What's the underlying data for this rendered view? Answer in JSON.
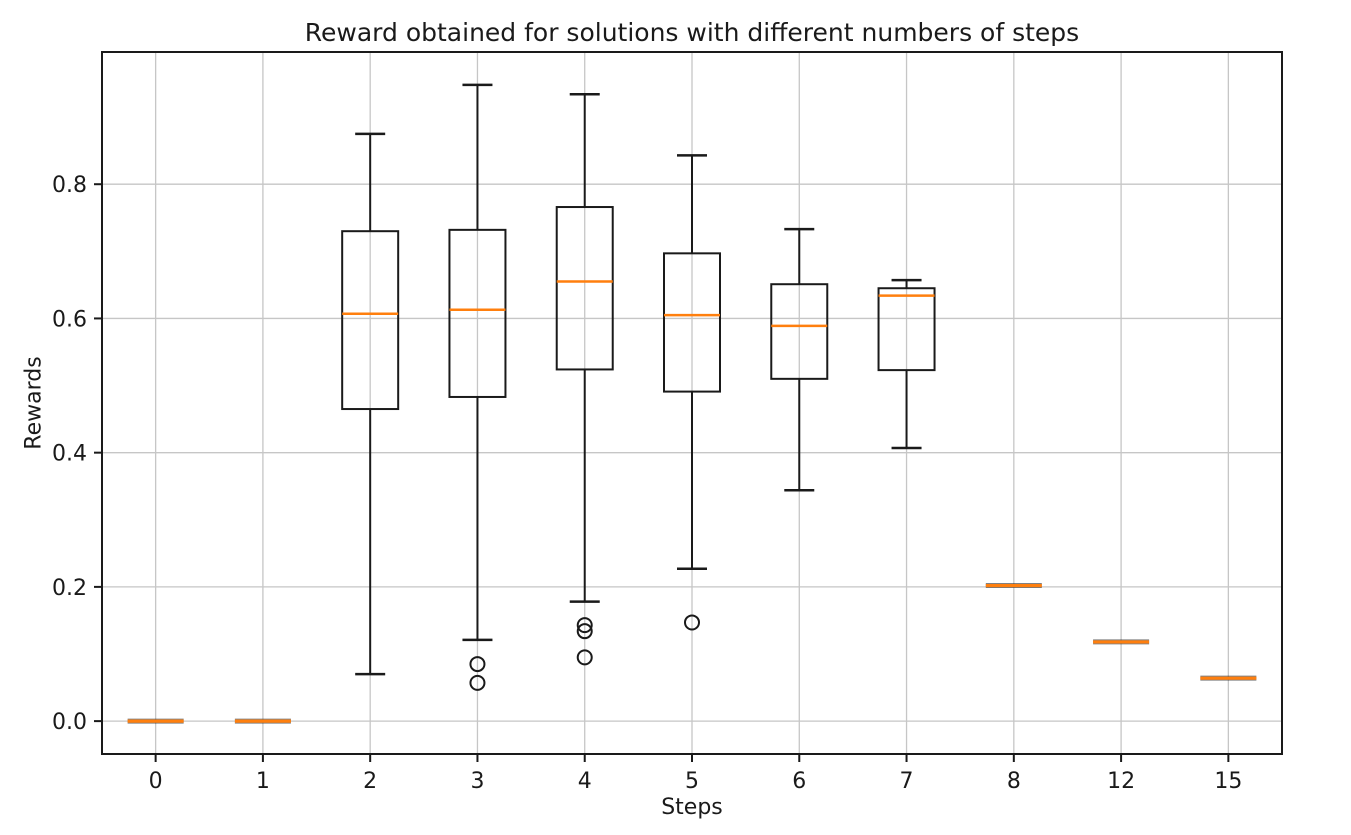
{
  "chart_data": {
    "type": "boxplot",
    "title": "Reward obtained for solutions with different numbers of steps",
    "xlabel": "Steps",
    "ylabel": "Rewards",
    "categories": [
      "0",
      "1",
      "2",
      "3",
      "4",
      "5",
      "6",
      "7",
      "8",
      "12",
      "15"
    ],
    "yticks": [
      {
        "label": "0.0",
        "value": 0.0
      },
      {
        "label": "0.2",
        "value": 0.2
      },
      {
        "label": "0.4",
        "value": 0.4
      },
      {
        "label": "0.6",
        "value": 0.6
      },
      {
        "label": "0.8",
        "value": 0.8
      }
    ],
    "ylim": [
      -0.049,
      0.997
    ],
    "grid": true,
    "boxes": [
      {
        "category": "0",
        "whisker_lo": 0.0,
        "q1": 0.0,
        "median": 0.0,
        "q3": 0.0,
        "whisker_hi": 0.0,
        "outliers": []
      },
      {
        "category": "1",
        "whisker_lo": 0.0,
        "q1": 0.0,
        "median": 0.0,
        "q3": 0.0,
        "whisker_hi": 0.0,
        "outliers": []
      },
      {
        "category": "2",
        "whisker_lo": 0.07,
        "q1": 0.465,
        "median": 0.607,
        "q3": 0.73,
        "whisker_hi": 0.875,
        "outliers": []
      },
      {
        "category": "3",
        "whisker_lo": 0.121,
        "q1": 0.483,
        "median": 0.613,
        "q3": 0.732,
        "whisker_hi": 0.948,
        "outliers": [
          0.085,
          0.057
        ]
      },
      {
        "category": "4",
        "whisker_lo": 0.178,
        "q1": 0.524,
        "median": 0.655,
        "q3": 0.766,
        "whisker_hi": 0.934,
        "outliers": [
          0.143,
          0.134,
          0.095
        ]
      },
      {
        "category": "5",
        "whisker_lo": 0.227,
        "q1": 0.491,
        "median": 0.605,
        "q3": 0.697,
        "whisker_hi": 0.843,
        "outliers": [
          0.147
        ]
      },
      {
        "category": "6",
        "whisker_lo": 0.344,
        "q1": 0.51,
        "median": 0.589,
        "q3": 0.651,
        "whisker_hi": 0.733,
        "outliers": []
      },
      {
        "category": "7",
        "whisker_lo": 0.407,
        "q1": 0.523,
        "median": 0.634,
        "q3": 0.645,
        "whisker_hi": 0.657,
        "outliers": []
      },
      {
        "category": "8",
        "whisker_lo": 0.202,
        "q1": 0.202,
        "median": 0.202,
        "q3": 0.202,
        "whisker_hi": 0.202,
        "outliers": []
      },
      {
        "category": "12",
        "whisker_lo": 0.118,
        "q1": 0.118,
        "median": 0.118,
        "q3": 0.118,
        "whisker_hi": 0.118,
        "outliers": []
      },
      {
        "category": "15",
        "whisker_lo": 0.064,
        "q1": 0.064,
        "median": 0.064,
        "q3": 0.064,
        "whisker_hi": 0.064,
        "outliers": []
      }
    ],
    "colors": {
      "box_edge": "#1a1a1a",
      "median": "#ff7f0e",
      "grid": "#c6c6c6",
      "spine": "#1a1a1a",
      "background": "#ffffff"
    }
  }
}
